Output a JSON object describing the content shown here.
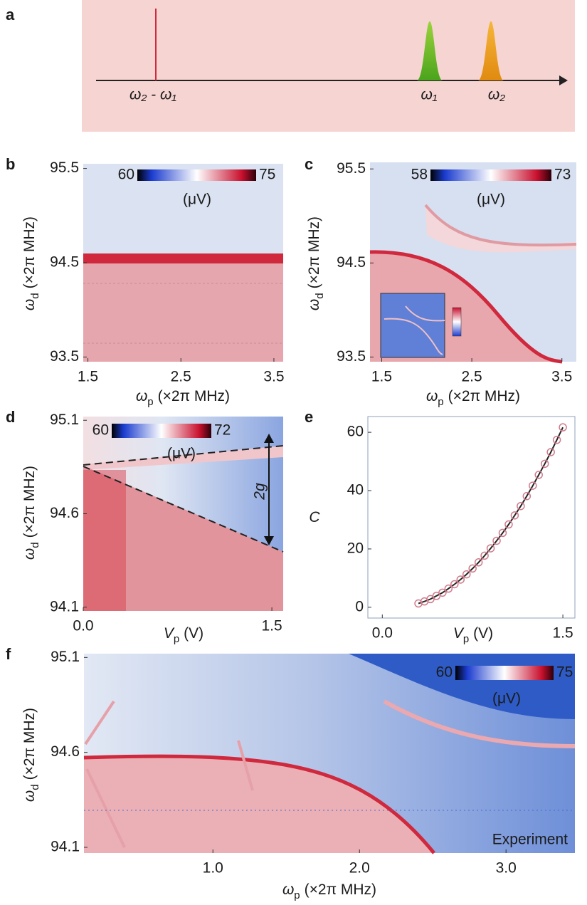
{
  "chart_data": [
    {
      "panel": "a",
      "type": "schematic",
      "labels": [
        "ω₂ - ω₁",
        "ω₁",
        "ω₂"
      ]
    },
    {
      "panel": "b",
      "type": "heatmap",
      "x_label": {
        "symbol": "ω",
        "sub": "p",
        "unit": "(×2π MHz)"
      },
      "y_label": {
        "symbol": "ω",
        "sub": "d",
        "unit": "(×2π MHz)"
      },
      "xlim": [
        1.45,
        3.6
      ],
      "xticks": [
        1.5,
        2.5,
        3.5
      ],
      "ylim": [
        93.45,
        95.55
      ],
      "yticks": [
        93.5,
        94.5,
        95.5
      ],
      "colorbar": {
        "lim": [
          60,
          75
        ],
        "ticks": [
          60,
          75
        ],
        "unit": "(μV)"
      }
    },
    {
      "panel": "c",
      "type": "heatmap",
      "x_label": {
        "symbol": "ω",
        "sub": "p",
        "unit": "(×2π MHz)"
      },
      "y_label": {
        "symbol": "ω",
        "sub": "d",
        "unit": "(×2π MHz)"
      },
      "xlim": [
        1.37,
        3.66
      ],
      "xticks": [
        1.5,
        2.5,
        3.5
      ],
      "ylim": [
        93.45,
        95.57
      ],
      "yticks": [
        93.5,
        94.5,
        95.5
      ],
      "colorbar": {
        "lim": [
          58,
          73
        ],
        "ticks": [
          58,
          73
        ],
        "unit": "(μV)"
      }
    },
    {
      "panel": "d",
      "type": "heatmap",
      "x_label": {
        "symbol": "V",
        "sub": "p",
        "unit": "(V)"
      },
      "y_label": {
        "symbol": "ω",
        "sub": "d",
        "unit": "(×2π MHz)"
      },
      "xlim": [
        0,
        1.59
      ],
      "xticks": [
        {
          "value": 0,
          "label": "0.0"
        },
        1.5
      ],
      "ylim": [
        94.08,
        95.12
      ],
      "yticks": [
        94.1,
        94.6,
        95.1
      ],
      "colorbar": {
        "lim": [
          60,
          72
        ],
        "ticks": [
          60,
          72
        ],
        "unit": "(μV)"
      },
      "annotations": [
        "2g"
      ]
    },
    {
      "panel": "e",
      "type": "scatter",
      "x_label": {
        "symbol": "V",
        "sub": "p",
        "unit": "(V)"
      },
      "y_label": {
        "symbol": "C"
      },
      "xlim": [
        -0.12,
        1.6
      ],
      "xticks": [
        {
          "value": 0,
          "label": "0.0"
        },
        1.5
      ],
      "ylim": [
        -3.7,
        65.4
      ],
      "yticks": [
        0,
        20,
        40,
        60
      ],
      "color": "#cf7a8c",
      "line_color": "#222222",
      "x": [
        0.3,
        0.35,
        0.4,
        0.45,
        0.5,
        0.55,
        0.6,
        0.65,
        0.7,
        0.75,
        0.8,
        0.85,
        0.9,
        0.95,
        1.0,
        1.05,
        1.1,
        1.15,
        1.2,
        1.25,
        1.3,
        1.35,
        1.4,
        1.45,
        1.5
      ],
      "values": [
        1.3,
        2.0,
        2.8,
        3.9,
        5.0,
        6.4,
        7.9,
        9.5,
        11.3,
        13.3,
        15.4,
        17.7,
        20.2,
        22.8,
        25.5,
        28.4,
        31.5,
        34.7,
        38.1,
        41.7,
        45.4,
        49.2,
        53.2,
        57.4,
        61.7
      ]
    },
    {
      "panel": "f",
      "type": "heatmap",
      "x_label": {
        "symbol": "ω",
        "sub": "p",
        "unit": "(×2π MHz)"
      },
      "y_label": {
        "symbol": "ω",
        "sub": "d",
        "unit": "(×2π MHz)"
      },
      "xlim": [
        0.12,
        3.47
      ],
      "xticks": [
        {
          "value": 1,
          "label": "1.0"
        },
        {
          "value": 2,
          "label": "2.0"
        },
        {
          "value": 3,
          "label": "3.0"
        }
      ],
      "ylim": [
        94.07,
        95.12
      ],
      "yticks": [
        94.1,
        94.6,
        95.1
      ],
      "colorbar": {
        "lim": [
          60,
          75
        ],
        "ticks": [
          60,
          75
        ],
        "unit": "(μV)"
      },
      "annotations": [
        "Experiment"
      ]
    }
  ]
}
